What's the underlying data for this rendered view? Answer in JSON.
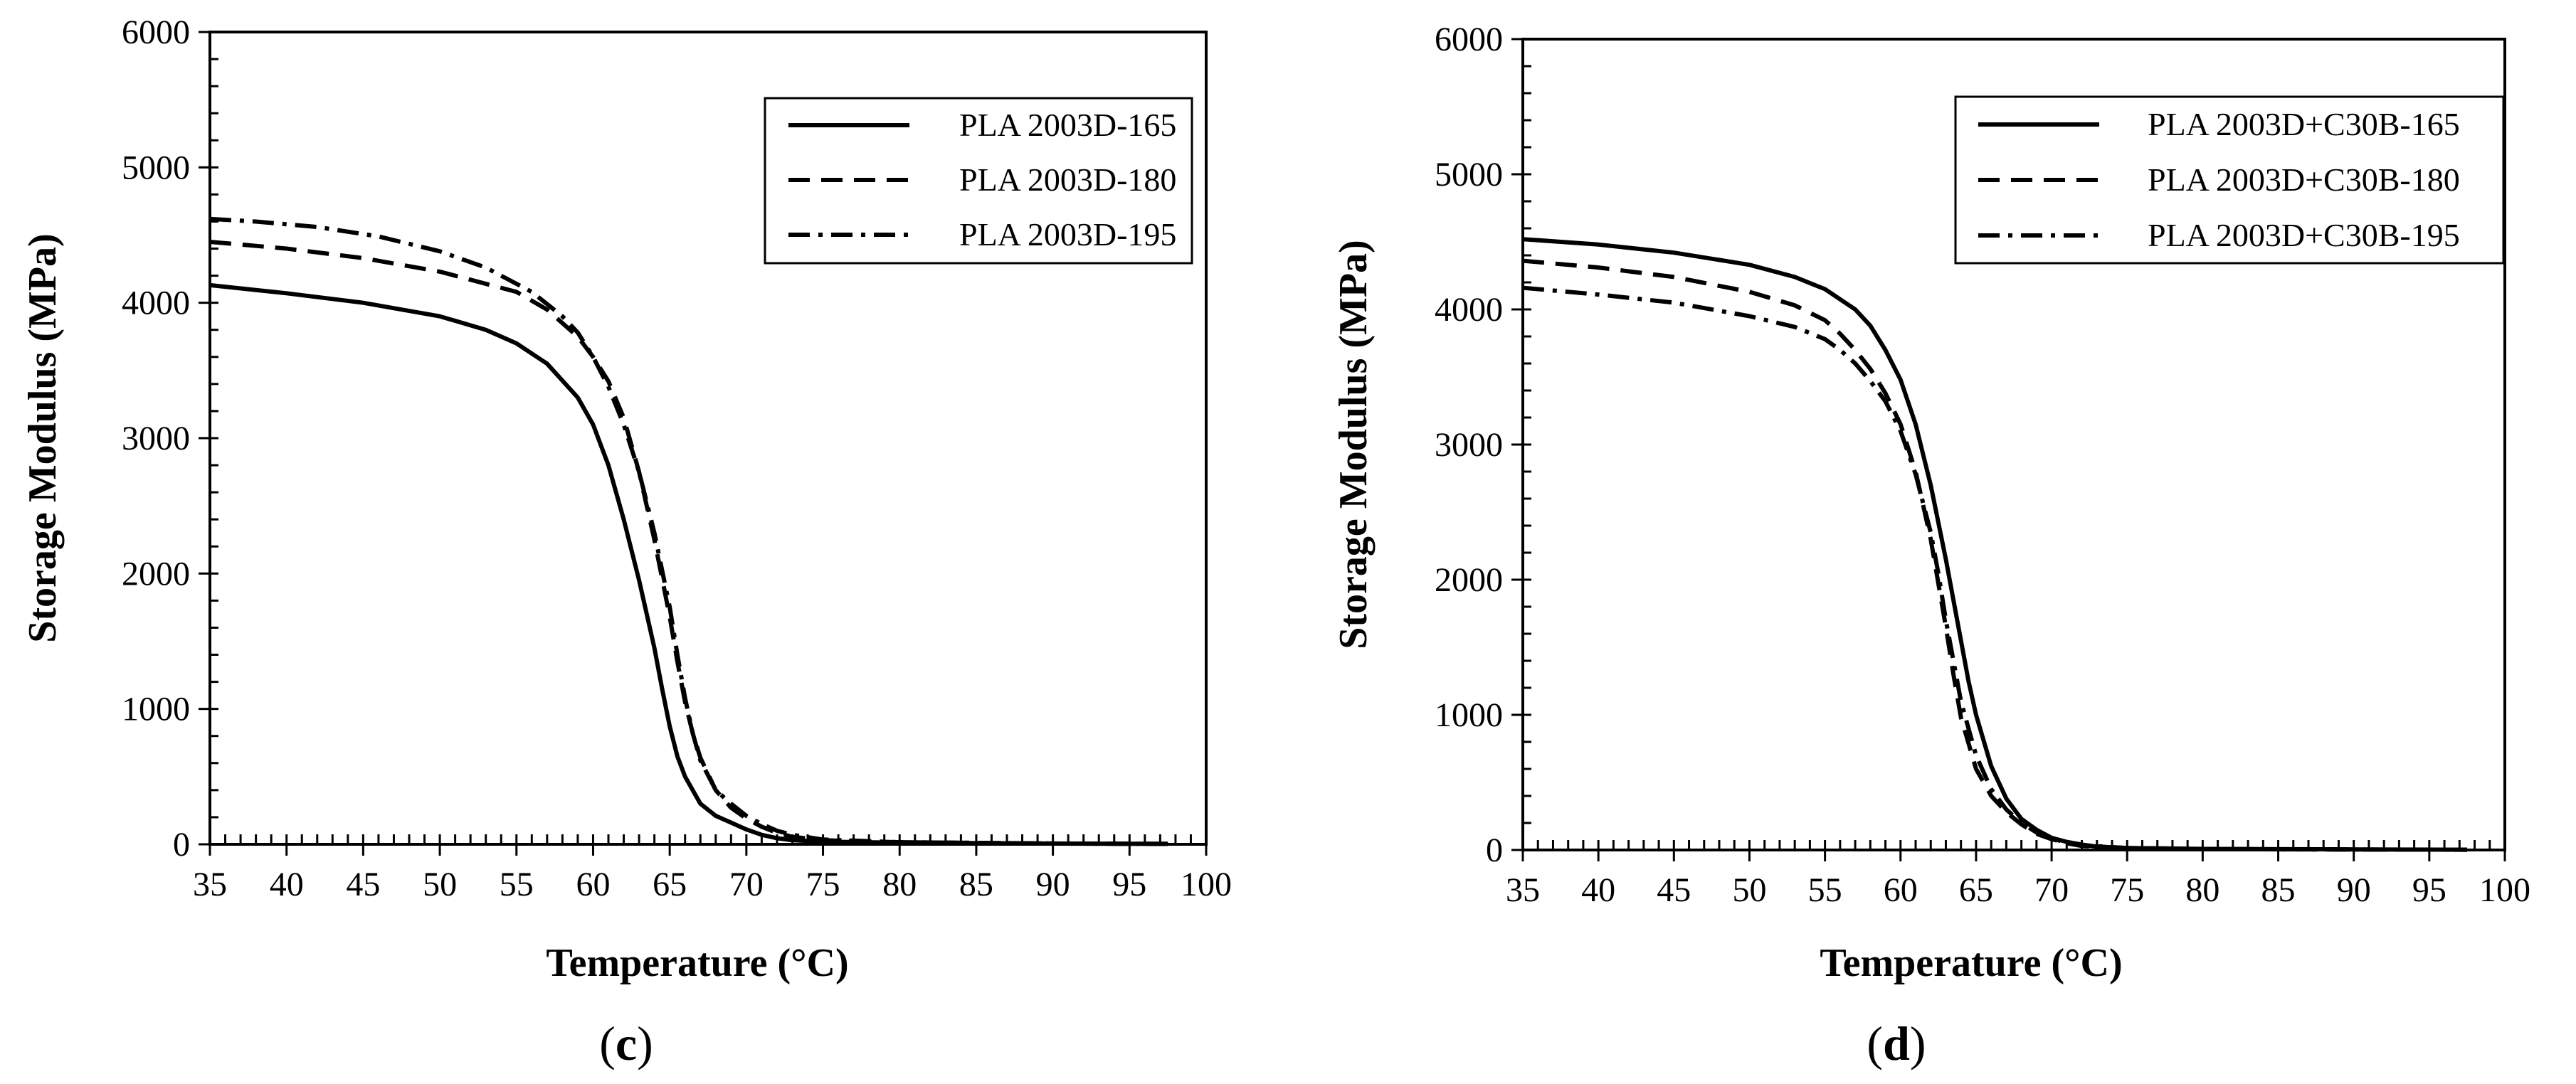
{
  "chart_data": [
    {
      "type": "line",
      "title": "",
      "panel_label_open": "(",
      "panel_label_letter": "c",
      "panel_label_close": ")",
      "xlabel": "Temperature (°C)",
      "ylabel": "Storage Modulus (MPa)",
      "xlim": [
        35,
        100
      ],
      "ylim": [
        0,
        6000
      ],
      "xticks": [
        35,
        40,
        45,
        50,
        55,
        60,
        65,
        70,
        75,
        80,
        85,
        90,
        95,
        100
      ],
      "yticks": [
        0,
        1000,
        2000,
        3000,
        4000,
        5000,
        6000
      ],
      "grid": false,
      "legend_position": "top-right",
      "series": [
        {
          "name": "PLA 2003D-165",
          "style": "solid",
          "x": [
            35,
            40,
            45,
            50,
            53,
            55,
            57,
            59,
            60,
            61,
            62,
            63,
            64,
            64.5,
            65,
            65.5,
            66,
            67,
            68,
            69,
            70,
            71,
            72,
            73,
            75,
            80,
            90,
            97.5
          ],
          "y": [
            4130,
            4070,
            4000,
            3900,
            3800,
            3700,
            3550,
            3300,
            3100,
            2800,
            2400,
            1950,
            1450,
            1150,
            870,
            650,
            500,
            300,
            210,
            160,
            110,
            70,
            45,
            30,
            20,
            12,
            5,
            3
          ]
        },
        {
          "name": "PLA 2003D-180",
          "style": "dashed",
          "x": [
            35,
            40,
            45,
            50,
            55,
            57,
            59,
            60,
            61,
            62,
            63,
            64,
            65,
            65.5,
            66,
            66.5,
            67,
            68,
            69,
            70,
            71,
            72,
            73,
            75,
            80,
            90,
            97.5
          ],
          "y": [
            4450,
            4400,
            4330,
            4230,
            4080,
            3950,
            3750,
            3600,
            3420,
            3150,
            2750,
            2250,
            1680,
            1350,
            1050,
            820,
            640,
            400,
            270,
            190,
            130,
            85,
            55,
            30,
            15,
            6,
            3
          ]
        },
        {
          "name": "PLA 2003D-195",
          "style": "dashdot",
          "x": [
            35,
            38,
            42,
            46,
            50,
            53,
            56,
            58,
            59,
            60,
            61,
            62,
            63,
            64,
            65,
            65.5,
            66,
            66.5,
            67,
            68,
            69,
            70,
            71,
            72,
            73,
            75,
            80,
            90,
            97.5
          ],
          "y": [
            4620,
            4600,
            4560,
            4490,
            4380,
            4260,
            4080,
            3900,
            3780,
            3600,
            3380,
            3100,
            2750,
            2300,
            1750,
            1400,
            1080,
            820,
            620,
            400,
            300,
            210,
            150,
            100,
            70,
            35,
            15,
            6,
            3
          ]
        }
      ]
    },
    {
      "type": "line",
      "title": "",
      "panel_label_open": "(",
      "panel_label_letter": "d",
      "panel_label_close": ")",
      "xlabel": "Temperature (°C)",
      "ylabel": "Storage Modulus (MPa)",
      "xlim": [
        35,
        100
      ],
      "ylim": [
        0,
        6000
      ],
      "xticks": [
        35,
        40,
        45,
        50,
        55,
        60,
        65,
        70,
        75,
        80,
        85,
        90,
        95,
        100
      ],
      "yticks": [
        0,
        1000,
        2000,
        3000,
        4000,
        5000,
        6000
      ],
      "grid": false,
      "legend_position": "top-right",
      "series": [
        {
          "name": "PLA 2003D+C30B-165",
          "style": "solid",
          "x": [
            35,
            40,
            45,
            50,
            53,
            55,
            57,
            58,
            59,
            60,
            61,
            62,
            63,
            64,
            64.5,
            65,
            66,
            67,
            68,
            69,
            70,
            71,
            72,
            73,
            75,
            80,
            90,
            97.5
          ],
          "y": [
            4520,
            4480,
            4420,
            4330,
            4240,
            4150,
            4000,
            3880,
            3700,
            3480,
            3150,
            2700,
            2150,
            1550,
            1250,
            1000,
            620,
            380,
            230,
            150,
            90,
            60,
            40,
            25,
            15,
            8,
            4,
            2
          ]
        },
        {
          "name": "PLA 2003D+C30B-180",
          "style": "dashed",
          "x": [
            35,
            40,
            45,
            50,
            53,
            55,
            56,
            57,
            58,
            59,
            60,
            61,
            62,
            63,
            63.5,
            64,
            65,
            66,
            67,
            68,
            69,
            70,
            71,
            72,
            75,
            80,
            90,
            97.5
          ],
          "y": [
            4360,
            4310,
            4240,
            4130,
            4030,
            3920,
            3820,
            3700,
            3560,
            3380,
            3150,
            2800,
            2300,
            1650,
            1300,
            980,
            600,
            400,
            280,
            190,
            120,
            80,
            50,
            30,
            15,
            7,
            3,
            2
          ]
        },
        {
          "name": "PLA 2003D+C30B-195",
          "style": "dashdot",
          "x": [
            35,
            40,
            45,
            50,
            53,
            55,
            56,
            57,
            58,
            59,
            60,
            61,
            62,
            62.5,
            63,
            63.5,
            64,
            65,
            66,
            67,
            68,
            69,
            70,
            71,
            72,
            75,
            80,
            90,
            97.5
          ],
          "y": [
            4160,
            4110,
            4050,
            3950,
            3870,
            3780,
            3700,
            3600,
            3470,
            3320,
            3100,
            2780,
            2350,
            2050,
            1700,
            1400,
            1100,
            700,
            450,
            300,
            200,
            130,
            85,
            55,
            35,
            15,
            7,
            3,
            2
          ]
        }
      ]
    }
  ]
}
